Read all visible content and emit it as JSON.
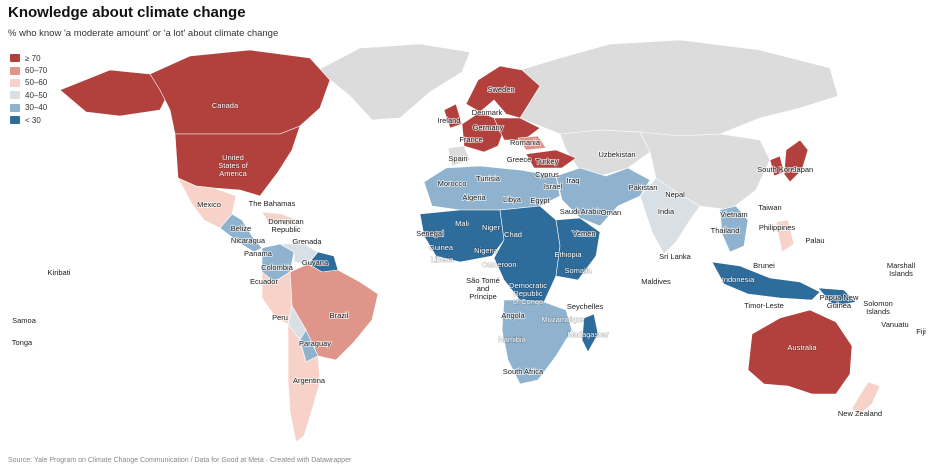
{
  "title": "Knowledge about climate change",
  "subtitle": "% who know 'a moderate amount' or 'a lot' about climate change",
  "source": "Source: Yale Program on Climate Change Communication / Data for Good at Meta · Created with Datawrapper",
  "legend": [
    {
      "label": "≥ 70",
      "key": "c70",
      "color": "#b2413d"
    },
    {
      "label": "60–70",
      "key": "c60",
      "color": "#e0958b"
    },
    {
      "label": "50–60",
      "key": "c50",
      "color": "#f6d2c8"
    },
    {
      "label": "40–50",
      "key": "c40",
      "color": "#d8e0e6"
    },
    {
      "label": "30–40",
      "key": "c30",
      "color": "#8fb3ce"
    },
    {
      "label": "< 30",
      "key": "c0",
      "color": "#2e6c9b"
    }
  ],
  "no_data_color": "#dcdcdc",
  "regions": {
    "canada": "c70",
    "usa": "c70",
    "alaska": "c70",
    "greenland": "none",
    "mexico": "c50",
    "central_america": "c30",
    "caribbean": "c50",
    "colombia": "c30",
    "venezuela": "c40",
    "guyana": "c0",
    "brazil": "c60",
    "peru": "c50",
    "paraguay": "c30",
    "bolivia": "c40",
    "argentina": "c50",
    "scandinavia": "c70",
    "uk": "c70",
    "west_europe": "c70",
    "east_europe": "c70",
    "romania": "c60",
    "russia": "none",
    "turkey": "c70",
    "north_africa": "c30",
    "west_africa": "c0",
    "central_africa": "c0",
    "east_africa": "c0",
    "south_africa_region": "c30",
    "madagascar": "c0",
    "middle_east": "c30",
    "central_asia": "none",
    "india": "c40",
    "china": "none",
    "se_asia": "c30",
    "japan": "c70",
    "korea": "c70",
    "indonesia": "c0",
    "philippines": "c50",
    "png": "c0",
    "australia": "c70",
    "new_zealand": "c50"
  },
  "labels": [
    {
      "name": "Canada"
    },
    {
      "name": "United States of America"
    },
    {
      "name": "Mexico"
    },
    {
      "name": "The Bahamas"
    },
    {
      "name": "Dominican Republic"
    },
    {
      "name": "Belize"
    },
    {
      "name": "Nicaragua"
    },
    {
      "name": "Grenada"
    },
    {
      "name": "Panama"
    },
    {
      "name": "Colombia"
    },
    {
      "name": "Guyana"
    },
    {
      "name": "Ecuador"
    },
    {
      "name": "Brazil"
    },
    {
      "name": "Peru"
    },
    {
      "name": "Paraguay"
    },
    {
      "name": "Argentina"
    },
    {
      "name": "Kiribati"
    },
    {
      "name": "Samoa"
    },
    {
      "name": "Tonga"
    },
    {
      "name": "Sweden"
    },
    {
      "name": "Denmark"
    },
    {
      "name": "Ireland"
    },
    {
      "name": "Germany"
    },
    {
      "name": "France"
    },
    {
      "name": "Romania"
    },
    {
      "name": "Spain"
    },
    {
      "name": "Greece"
    },
    {
      "name": "Turkey"
    },
    {
      "name": "Cyprus"
    },
    {
      "name": "Tunisia"
    },
    {
      "name": "Morocco"
    },
    {
      "name": "Algeria"
    },
    {
      "name": "Libya"
    },
    {
      "name": "Egypt"
    },
    {
      "name": "Israel"
    },
    {
      "name": "Iraq"
    },
    {
      "name": "Saudi Arabia"
    },
    {
      "name": "Oman"
    },
    {
      "name": "Yemen"
    },
    {
      "name": "Uzbekistan"
    },
    {
      "name": "Pakistan"
    },
    {
      "name": "Nepal"
    },
    {
      "name": "India"
    },
    {
      "name": "Sri Lanka"
    },
    {
      "name": "Maldives"
    },
    {
      "name": "Mali"
    },
    {
      "name": "Niger"
    },
    {
      "name": "Chad"
    },
    {
      "name": "Senegal"
    },
    {
      "name": "Guinea"
    },
    {
      "name": "Liberia"
    },
    {
      "name": "Nigeria"
    },
    {
      "name": "Cameroon"
    },
    {
      "name": "Ethiopia"
    },
    {
      "name": "Somalia"
    },
    {
      "name": "São Tomé and Príncipe"
    },
    {
      "name": "Democratic Republic of Congo"
    },
    {
      "name": "Seychelles"
    },
    {
      "name": "Angola"
    },
    {
      "name": "Mozambique"
    },
    {
      "name": "Madagascar"
    },
    {
      "name": "Namibia"
    },
    {
      "name": "South Africa"
    },
    {
      "name": "South Korea"
    },
    {
      "name": "Japan"
    },
    {
      "name": "Taiwan"
    },
    {
      "name": "Vietnam"
    },
    {
      "name": "Thailand"
    },
    {
      "name": "Philippines"
    },
    {
      "name": "Palau"
    },
    {
      "name": "Brunei"
    },
    {
      "name": "Indonesia"
    },
    {
      "name": "Timor-Leste"
    },
    {
      "name": "Papua New Guinea"
    },
    {
      "name": "Marshall Islands"
    },
    {
      "name": "Solomon Islands"
    },
    {
      "name": "Vanuatu"
    },
    {
      "name": "Fiji"
    },
    {
      "name": "Australia"
    },
    {
      "name": "New Zealand"
    }
  ]
}
